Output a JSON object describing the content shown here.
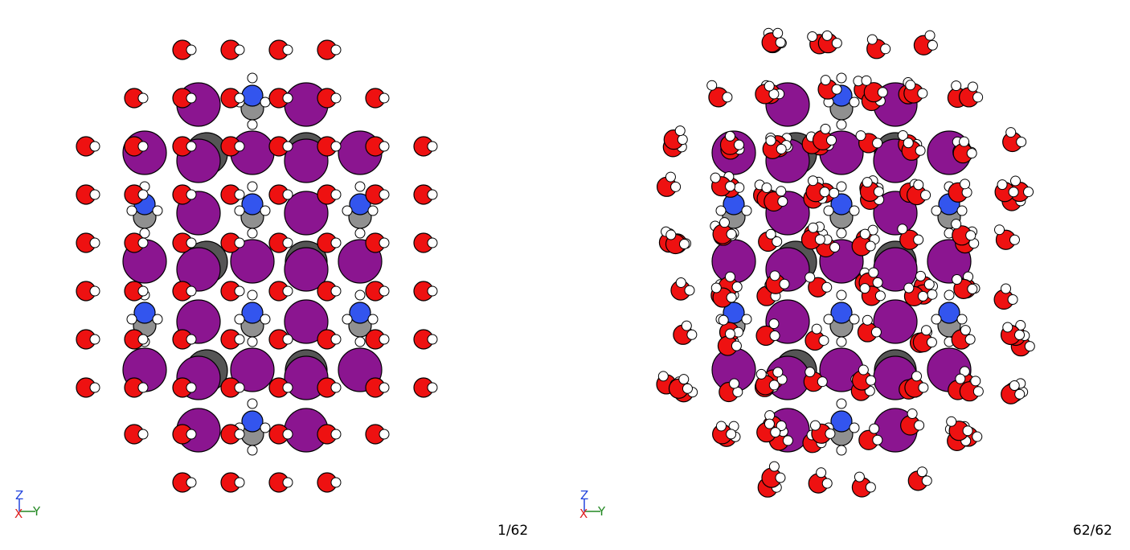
{
  "panels": [
    {
      "id": "left",
      "frame_label": "1/62",
      "jitter": 0
    },
    {
      "id": "right",
      "frame_label": "62/62",
      "jitter": 1
    }
  ],
  "axes": {
    "up": "Z",
    "out": "X",
    "right": "Y",
    "colors": {
      "Z": "#2244dd",
      "X": "#dd2222",
      "Y": "#228822"
    }
  },
  "colors": {
    "iodine": "#8b1590",
    "lead": "#555555",
    "nitrogen": "#3355ee",
    "carbon": "#909090",
    "oxygen": "#ee1111",
    "hydrogen": "#ffffff",
    "outline": "#000000"
  }
}
